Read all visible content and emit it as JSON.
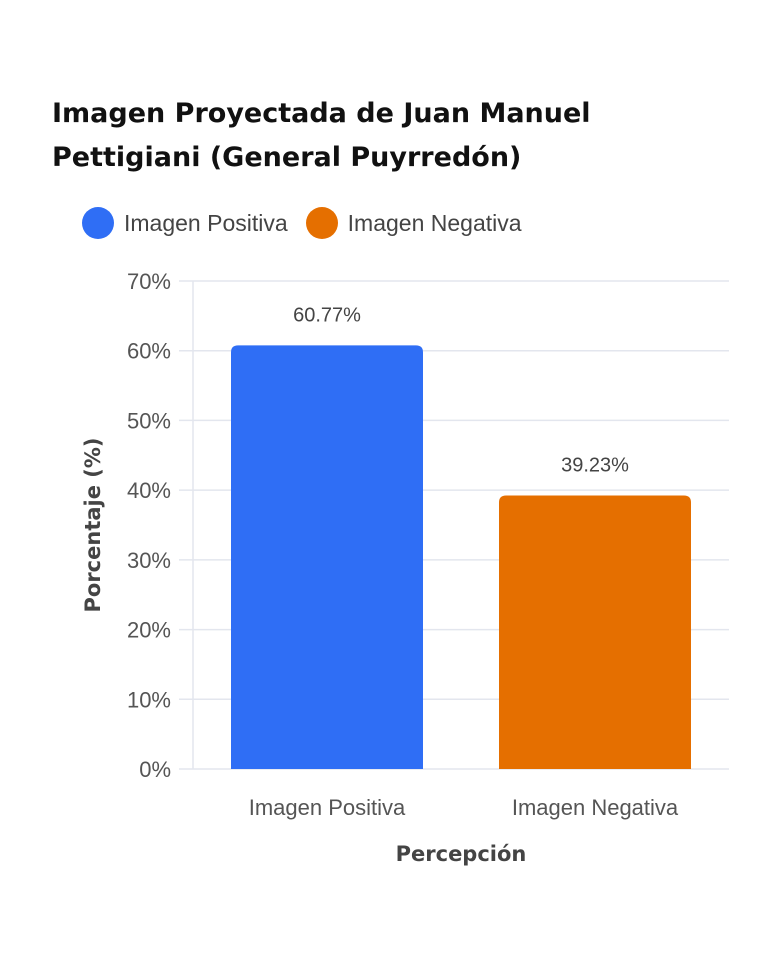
{
  "chart_data": {
    "type": "bar",
    "title": "Imagen Proyectada de Juan Manuel Pettigiani (General Puyrredón)",
    "categories": [
      "Imagen Positiva",
      "Imagen Negativa"
    ],
    "values": [
      60.77,
      39.23
    ],
    "value_labels": [
      "60.77%",
      "39.23%"
    ],
    "colors": [
      "#2f6ef5",
      "#e56f00"
    ],
    "legend": {
      "placement": "top-left",
      "items": [
        {
          "label": "Imagen Positiva",
          "color": "#2f6ef5"
        },
        {
          "label": "Imagen Negativa",
          "color": "#e56f00"
        }
      ]
    },
    "xlabel": "Percepción",
    "ylabel": "Porcentaje (%)",
    "ylim": [
      0,
      70
    ],
    "yticks": [
      0,
      10,
      20,
      30,
      40,
      50,
      60,
      70
    ],
    "ytick_labels": [
      "0%",
      "10%",
      "20%",
      "30%",
      "40%",
      "50%",
      "60%",
      "70%"
    ],
    "grid": true
  }
}
